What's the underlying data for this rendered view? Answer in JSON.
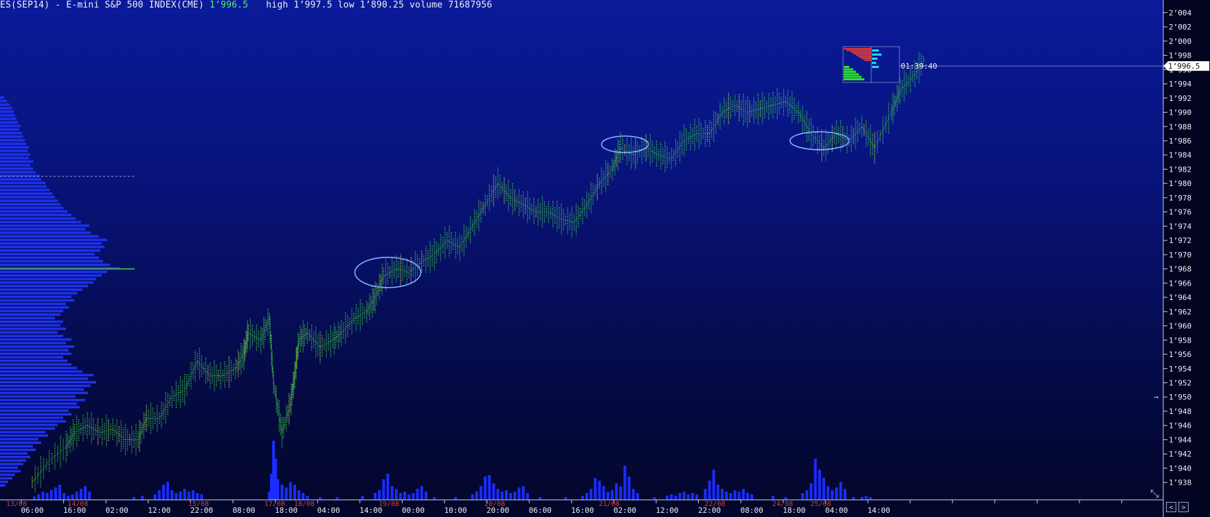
{
  "header": {
    "instrument": "ES(SEP14) - E-mini S&P 500 INDEX(CME)",
    "last": "1’996.5",
    "high_label": "high",
    "high": "1’997.5",
    "low_label": "low",
    "low": "1’890.25",
    "volume_label": "volume",
    "volume": "71687956"
  },
  "timer": "01:39:40",
  "price_tag": "1’996.5",
  "colors": {
    "price_up": "#44e040",
    "price_alt": "#e8e840",
    "volume": "#1a2cff",
    "profile": "#1e30e8",
    "axis_text": "#f0f0f0",
    "date_text": "#e23a2a",
    "ellipse": "#7fb0ff",
    "poc": "#4ad04a"
  },
  "chart_data": {
    "type": "line",
    "ylim": [
      1937,
      2005
    ],
    "y_ticks": [
      "1’938",
      "1’940",
      "1’942",
      "1’944",
      "1’946",
      "1’948",
      "1’950",
      "1’952",
      "1’954",
      "1’956",
      "1’958",
      "1’960",
      "1’962",
      "1’964",
      "1’966",
      "1’968",
      "1’970",
      "1’972",
      "1’974",
      "1’976",
      "1’978",
      "1’980",
      "1’982",
      "1’984",
      "1’986",
      "1’988",
      "1’990",
      "1’992",
      "1’994",
      "1’996",
      "1’998",
      "2’000",
      "2’002",
      "2’004"
    ],
    "x_ticks": [
      "06:00",
      "16:00",
      "02:00",
      "12:00",
      "22:00",
      "08:00",
      "18:00",
      "04:00",
      "14:00",
      "00:00",
      "10:00",
      "20:00",
      "06:00",
      "16:00",
      "02:00",
      "12:00",
      "22:00",
      "08:00",
      "18:00",
      "04:00",
      "14:00"
    ],
    "date_labels": [
      {
        "label": "13/08",
        "tick": 0
      },
      {
        "label": "14/08",
        "tick": 1.45
      },
      {
        "label": "15/08",
        "tick": 4.3
      },
      {
        "label": "17/08",
        "tick": 6.1
      },
      {
        "label": "18/08",
        "tick": 6.8
      },
      {
        "label": "19/08",
        "tick": 8.8
      },
      {
        "label": "20/08",
        "tick": 11.3
      },
      {
        "label": "21/08",
        "tick": 14.0
      },
      {
        "label": "22/08",
        "tick": 16.5
      },
      {
        "label": "24/08",
        "tick": 18.1
      },
      {
        "label": "25/08",
        "tick": 19.0
      }
    ],
    "price_series": [
      [
        0.0,
        1938
      ],
      [
        0.4,
        1941
      ],
      [
        0.8,
        1943
      ],
      [
        1.0,
        1945
      ],
      [
        1.3,
        1946
      ],
      [
        1.6,
        1945
      ],
      [
        1.9,
        1945.5
      ],
      [
        2.2,
        1944
      ],
      [
        2.5,
        1944
      ],
      [
        2.7,
        1947
      ],
      [
        3.0,
        1947
      ],
      [
        3.3,
        1950
      ],
      [
        3.6,
        1951
      ],
      [
        3.9,
        1955
      ],
      [
        4.2,
        1953
      ],
      [
        4.5,
        1953
      ],
      [
        4.8,
        1954
      ],
      [
        5.0,
        1956
      ],
      [
        5.1,
        1959
      ],
      [
        5.4,
        1958
      ],
      [
        5.6,
        1961
      ],
      [
        5.7,
        1952
      ],
      [
        5.9,
        1945
      ],
      [
        6.1,
        1949
      ],
      [
        6.2,
        1953
      ],
      [
        6.3,
        1958
      ],
      [
        6.5,
        1959
      ],
      [
        6.8,
        1957
      ],
      [
        7.1,
        1958
      ],
      [
        7.3,
        1959
      ],
      [
        7.6,
        1961
      ],
      [
        7.9,
        1962
      ],
      [
        8.1,
        1964
      ],
      [
        8.3,
        1967
      ],
      [
        8.6,
        1968
      ],
      [
        8.9,
        1967.5
      ],
      [
        9.2,
        1969
      ],
      [
        9.5,
        1970
      ],
      [
        9.8,
        1972
      ],
      [
        10.1,
        1971
      ],
      [
        10.4,
        1974
      ],
      [
        10.7,
        1977
      ],
      [
        11.0,
        1980
      ],
      [
        11.3,
        1978
      ],
      [
        11.6,
        1977
      ],
      [
        11.9,
        1976
      ],
      [
        12.2,
        1976
      ],
      [
        12.5,
        1975
      ],
      [
        12.8,
        1974.5
      ],
      [
        13.1,
        1977
      ],
      [
        13.4,
        1980
      ],
      [
        13.7,
        1982
      ],
      [
        13.9,
        1985
      ],
      [
        14.2,
        1984
      ],
      [
        14.5,
        1985
      ],
      [
        14.8,
        1984
      ],
      [
        15.1,
        1983.5
      ],
      [
        15.4,
        1986
      ],
      [
        15.7,
        1987
      ],
      [
        16.0,
        1987
      ],
      [
        16.3,
        1990
      ],
      [
        16.6,
        1991
      ],
      [
        16.9,
        1990
      ],
      [
        17.2,
        1990.5
      ],
      [
        17.5,
        1991
      ],
      [
        17.8,
        1991.5
      ],
      [
        18.1,
        1990
      ],
      [
        18.4,
        1987
      ],
      [
        18.7,
        1985
      ],
      [
        19.0,
        1987
      ],
      [
        19.3,
        1986
      ],
      [
        19.6,
        1988
      ],
      [
        19.9,
        1985
      ],
      [
        20.3,
        1990
      ],
      [
        20.5,
        1993
      ],
      [
        20.8,
        1995
      ],
      [
        21.1,
        1997.5
      ]
    ],
    "volume_bars": [
      [
        0.05,
        5
      ],
      [
        0.15,
        8
      ],
      [
        0.25,
        12
      ],
      [
        0.35,
        10
      ],
      [
        0.45,
        14
      ],
      [
        0.55,
        18
      ],
      [
        0.65,
        22
      ],
      [
        0.75,
        10
      ],
      [
        0.85,
        6
      ],
      [
        0.95,
        8
      ],
      [
        1.05,
        12
      ],
      [
        1.15,
        16
      ],
      [
        1.25,
        20
      ],
      [
        1.35,
        12
      ],
      [
        2.4,
        4
      ],
      [
        2.6,
        6
      ],
      [
        2.9,
        8
      ],
      [
        3.0,
        14
      ],
      [
        3.1,
        22
      ],
      [
        3.2,
        26
      ],
      [
        3.3,
        14
      ],
      [
        3.4,
        10
      ],
      [
        3.5,
        12
      ],
      [
        3.6,
        16
      ],
      [
        3.7,
        12
      ],
      [
        3.8,
        14
      ],
      [
        3.9,
        10
      ],
      [
        4.0,
        8
      ],
      [
        5.6,
        12
      ],
      [
        5.65,
        38
      ],
      [
        5.7,
        86
      ],
      [
        5.75,
        60
      ],
      [
        5.8,
        30
      ],
      [
        5.9,
        22
      ],
      [
        6.0,
        18
      ],
      [
        6.1,
        26
      ],
      [
        6.2,
        22
      ],
      [
        6.3,
        14
      ],
      [
        6.4,
        10
      ],
      [
        6.5,
        6
      ],
      [
        6.8,
        4
      ],
      [
        7.2,
        4
      ],
      [
        7.8,
        6
      ],
      [
        8.1,
        10
      ],
      [
        8.2,
        14
      ],
      [
        8.3,
        30
      ],
      [
        8.4,
        38
      ],
      [
        8.5,
        20
      ],
      [
        8.6,
        16
      ],
      [
        8.7,
        10
      ],
      [
        8.8,
        12
      ],
      [
        8.9,
        8
      ],
      [
        9.0,
        10
      ],
      [
        9.1,
        16
      ],
      [
        9.2,
        20
      ],
      [
        9.3,
        12
      ],
      [
        9.5,
        4
      ],
      [
        10.0,
        4
      ],
      [
        10.4,
        8
      ],
      [
        10.5,
        12
      ],
      [
        10.6,
        20
      ],
      [
        10.7,
        34
      ],
      [
        10.8,
        36
      ],
      [
        10.9,
        24
      ],
      [
        11.0,
        16
      ],
      [
        11.1,
        12
      ],
      [
        11.2,
        14
      ],
      [
        11.3,
        10
      ],
      [
        11.4,
        12
      ],
      [
        11.5,
        18
      ],
      [
        11.6,
        20
      ],
      [
        11.7,
        10
      ],
      [
        12.0,
        4
      ],
      [
        12.6,
        4
      ],
      [
        13.0,
        6
      ],
      [
        13.1,
        10
      ],
      [
        13.2,
        16
      ],
      [
        13.3,
        32
      ],
      [
        13.4,
        28
      ],
      [
        13.5,
        20
      ],
      [
        13.6,
        12
      ],
      [
        13.7,
        14
      ],
      [
        13.8,
        24
      ],
      [
        13.9,
        20
      ],
      [
        14.0,
        50
      ],
      [
        14.1,
        34
      ],
      [
        14.2,
        16
      ],
      [
        14.3,
        10
      ],
      [
        14.7,
        4
      ],
      [
        15.0,
        6
      ],
      [
        15.1,
        8
      ],
      [
        15.2,
        6
      ],
      [
        15.3,
        10
      ],
      [
        15.4,
        12
      ],
      [
        15.5,
        8
      ],
      [
        15.6,
        10
      ],
      [
        15.7,
        8
      ],
      [
        15.9,
        16
      ],
      [
        16.0,
        28
      ],
      [
        16.1,
        44
      ],
      [
        16.2,
        22
      ],
      [
        16.3,
        16
      ],
      [
        16.4,
        12
      ],
      [
        16.5,
        10
      ],
      [
        16.6,
        14
      ],
      [
        16.7,
        12
      ],
      [
        16.8,
        16
      ],
      [
        16.9,
        10
      ],
      [
        17.0,
        8
      ],
      [
        17.5,
        6
      ],
      [
        17.8,
        4
      ],
      [
        18.2,
        10
      ],
      [
        18.3,
        14
      ],
      [
        18.4,
        24
      ],
      [
        18.5,
        60
      ],
      [
        18.6,
        44
      ],
      [
        18.7,
        32
      ],
      [
        18.8,
        20
      ],
      [
        18.9,
        14
      ],
      [
        19.0,
        18
      ],
      [
        19.1,
        26
      ],
      [
        19.2,
        16
      ],
      [
        19.4,
        4
      ],
      [
        19.6,
        4
      ],
      [
        19.7,
        6
      ],
      [
        19.8,
        4
      ]
    ],
    "session_profile": [
      [
        1937.5,
        8
      ],
      [
        1938,
        12
      ],
      [
        1938.5,
        18
      ],
      [
        1939,
        22
      ],
      [
        1939.5,
        30
      ],
      [
        1940,
        26
      ],
      [
        1940.5,
        34
      ],
      [
        1941,
        38
      ],
      [
        1941.5,
        44
      ],
      [
        1942,
        40
      ],
      [
        1942.5,
        52
      ],
      [
        1943,
        48
      ],
      [
        1943.5,
        60
      ],
      [
        1944,
        56
      ],
      [
        1944.5,
        70
      ],
      [
        1945,
        66
      ],
      [
        1945.5,
        80
      ],
      [
        1946,
        84
      ],
      [
        1946.5,
        96
      ],
      [
        1947,
        92
      ],
      [
        1947.5,
        104
      ],
      [
        1948,
        100
      ],
      [
        1948.5,
        116
      ],
      [
        1949,
        112
      ],
      [
        1949.5,
        124
      ],
      [
        1950,
        110
      ],
      [
        1950.5,
        128
      ],
      [
        1951,
        122
      ],
      [
        1951.5,
        132
      ],
      [
        1952,
        140
      ],
      [
        1952.5,
        128
      ],
      [
        1953,
        136
      ],
      [
        1953.5,
        120
      ],
      [
        1954,
        112
      ],
      [
        1954.5,
        104
      ],
      [
        1955,
        98
      ],
      [
        1955.5,
        92
      ],
      [
        1956,
        104
      ],
      [
        1956.5,
        100
      ],
      [
        1957,
        108
      ],
      [
        1957.5,
        96
      ],
      [
        1958,
        104
      ],
      [
        1958.5,
        92
      ],
      [
        1959,
        84
      ],
      [
        1959.5,
        96
      ],
      [
        1960,
        88
      ],
      [
        1960.5,
        92
      ],
      [
        1961,
        80
      ],
      [
        1961.5,
        88
      ],
      [
        1962,
        92
      ],
      [
        1962.5,
        100
      ],
      [
        1963,
        96
      ],
      [
        1963.5,
        108
      ],
      [
        1964,
        104
      ],
      [
        1964.5,
        112
      ],
      [
        1965,
        120
      ],
      [
        1965.5,
        128
      ],
      [
        1966,
        136
      ],
      [
        1966.5,
        140
      ],
      [
        1967,
        148
      ],
      [
        1967.5,
        156
      ],
      [
        1968,
        174
      ],
      [
        1968.5,
        160
      ],
      [
        1969,
        150
      ],
      [
        1969.5,
        144
      ],
      [
        1970,
        138
      ],
      [
        1970.5,
        146
      ],
      [
        1971,
        152
      ],
      [
        1971.5,
        148
      ],
      [
        1972,
        156
      ],
      [
        1972.5,
        144
      ],
      [
        1973,
        132
      ],
      [
        1973.5,
        124
      ],
      [
        1974,
        130
      ],
      [
        1974.5,
        118
      ],
      [
        1975,
        110
      ],
      [
        1975.5,
        104
      ],
      [
        1976,
        98
      ],
      [
        1976.5,
        92
      ],
      [
        1977,
        88
      ],
      [
        1977.5,
        84
      ],
      [
        1978,
        80
      ],
      [
        1978.5,
        76
      ],
      [
        1979,
        72
      ],
      [
        1979.5,
        68
      ],
      [
        1980,
        66
      ],
      [
        1980.5,
        60
      ],
      [
        1981,
        58
      ],
      [
        1981.5,
        52
      ],
      [
        1982,
        48
      ],
      [
        1982.5,
        44
      ],
      [
        1983,
        48
      ],
      [
        1983.5,
        42
      ],
      [
        1984,
        44
      ],
      [
        1984.5,
        40
      ],
      [
        1985,
        42
      ],
      [
        1985.5,
        38
      ],
      [
        1986,
        36
      ],
      [
        1986.5,
        34
      ],
      [
        1987,
        32
      ],
      [
        1987.5,
        28
      ],
      [
        1988,
        30
      ],
      [
        1988.5,
        26
      ],
      [
        1989,
        24
      ],
      [
        1989.5,
        22
      ],
      [
        1990,
        20
      ],
      [
        1990.5,
        18
      ],
      [
        1991,
        14
      ],
      [
        1991.5,
        10
      ],
      [
        1992,
        6
      ]
    ],
    "poc_price": 1968,
    "value_area_high": 1981,
    "ellipses": [
      {
        "tick": 8.4,
        "price": 1967.5
      },
      {
        "tick": 14.0,
        "price": 1985.5
      },
      {
        "tick": 18.6,
        "price": 1986
      }
    ],
    "current_price": 1996.5
  }
}
